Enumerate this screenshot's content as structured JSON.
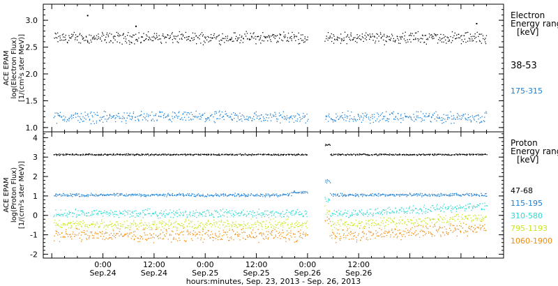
{
  "chart_data": [
    {
      "type": "scatter",
      "panel": "electron",
      "ylabel_lines": [
        "ACE EPAM",
        "log(Electron Flux)",
        "[1/(cm²s ster MeV)]"
      ],
      "yticks": [
        1.0,
        1.5,
        2.0,
        2.5,
        3.0
      ],
      "ytick_labels": [
        "1.0",
        "1.5",
        "2.0",
        "2.5",
        "3.0"
      ],
      "ylim": [
        0.92,
        3.3
      ],
      "legend_title_lines": [
        "Electron",
        "Energy ranges",
        "[keV]"
      ],
      "series": [
        {
          "name": "38-53",
          "color": "#000000",
          "base": 2.68,
          "noise": 0.13
        },
        {
          "name": "175-315",
          "color": "#1a7fd6",
          "base": 1.2,
          "noise": 0.13
        }
      ],
      "outliers": [
        {
          "series": 0,
          "t": 0.095,
          "v": 3.1
        },
        {
          "series": 0,
          "t": 0.2,
          "v": 2.9
        },
        {
          "series": 0,
          "t": 0.94,
          "v": 2.95
        }
      ]
    },
    {
      "type": "scatter",
      "panel": "proton",
      "ylabel_lines": [
        "ACE EPAM",
        "log(Proton Flux)",
        "[1/(cm²s ster MeV)]"
      ],
      "yticks": [
        -2,
        -1,
        0,
        1,
        2,
        3,
        4
      ],
      "ytick_labels": [
        "-2",
        "-1",
        "0",
        "1",
        "2",
        "3",
        "4"
      ],
      "ylim": [
        -2.2,
        4.3
      ],
      "legend_title_lines": [
        "Proton",
        "Energy ranges",
        "[keV]"
      ],
      "series": [
        {
          "name": "47-68",
          "color": "#000000",
          "base": 3.15,
          "noise": 0.05
        },
        {
          "name": "115-195",
          "color": "#1a7fd6",
          "base": 1.07,
          "noise": 0.1
        },
        {
          "name": "310-580",
          "color": "#2fd9d0",
          "base": 0.12,
          "noise": 0.25
        },
        {
          "name": "795-1193",
          "color": "#c8e61e",
          "base": -0.45,
          "noise": 0.3
        },
        {
          "name": "1060-1900",
          "color": "#f08a0a",
          "base": -1.0,
          "noise": 0.4
        }
      ]
    }
  ],
  "x_axis": {
    "xlim_hours": [
      -14,
      94
    ],
    "gap_hours": [
      48,
      52
    ],
    "data_end_hours": 90,
    "ticks": [
      {
        "hours": 0,
        "time": "0:00",
        "date": "Sep.24"
      },
      {
        "hours": 12,
        "time": "12:00",
        "date": "Sep.24"
      },
      {
        "hours": 24,
        "time": "0:00",
        "date": "Sep.25"
      },
      {
        "hours": 36,
        "time": "12:00",
        "date": "Sep.25"
      },
      {
        "hours": 48,
        "time": "0:00",
        "date": "Sep.26"
      },
      {
        "hours": 60,
        "time": "12:00",
        "date": "Sep.26"
      }
    ],
    "xlabel": "hours:minutes, Sep. 23, 2013 - Sep. 26, 2013"
  }
}
